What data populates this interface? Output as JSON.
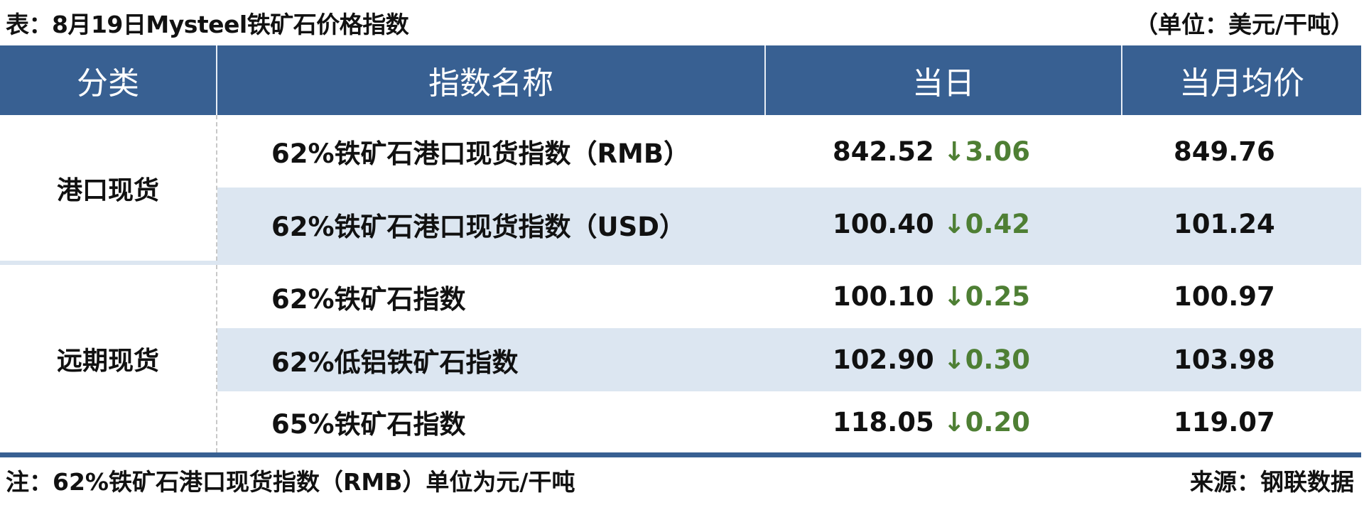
{
  "title": "表：8月19日Mysteel铁矿石价格指数",
  "unit": "（单位：美元/干吨）",
  "headers": [
    "分类",
    "指数名称",
    "当日",
    "当月均价"
  ],
  "groups": [
    {
      "category": "港口现货",
      "rows": [
        {
          "name": "62%铁矿石港口现货指数（RMB）",
          "day": "842.52",
          "change": "↓3.06",
          "avg": "849.76"
        },
        {
          "name": "62%铁矿石港口现货指数（USD）",
          "day": "100.40",
          "change": "↓0.42",
          "avg": "101.24"
        }
      ]
    },
    {
      "category": "远期现货",
      "rows": [
        {
          "name": "62%铁矿石指数",
          "day": "100.10",
          "change": "↓0.25",
          "avg": "100.97"
        },
        {
          "name": "62%低铝铁矿石指数",
          "day": "102.90",
          "change": "↓0.30",
          "avg": "103.98"
        },
        {
          "name": "65%铁矿石指数",
          "day": "118.05",
          "change": "↓0.20",
          "avg": "119.07"
        }
      ]
    }
  ],
  "note": "注：62%铁矿石港口现货指数（RMB）单位为元/干吨",
  "source": "来源：钢联数据",
  "colors": {
    "header": "#386092",
    "stripe": "#dce6f1",
    "down": "#4e7f34"
  }
}
